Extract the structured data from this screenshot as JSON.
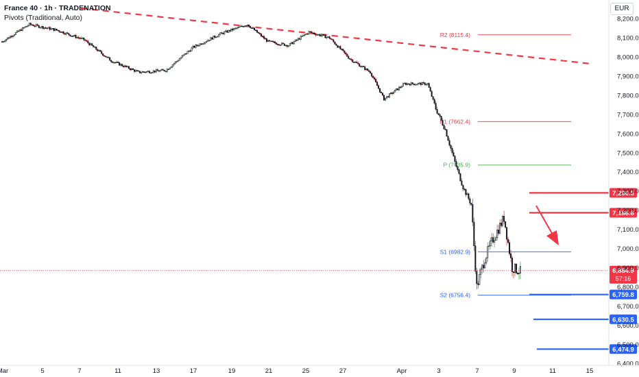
{
  "header": {
    "title": "France 40 · 1h · TRADENATION",
    "subtitle": "Pivots (Traditional, Auto)",
    "currency": "EUR"
  },
  "chart_data": {
    "type": "candlestick",
    "y_axis": {
      "range": [
        6340,
        8290
      ],
      "ticks": [
        "8,200.0",
        "8,100.0",
        "8,000.0",
        "7,900.0",
        "7,800.0",
        "7,700.0",
        "7,600.0",
        "7,500.0",
        "7,400.0",
        "7,300.0",
        "7,200.0",
        "7,100.0",
        "7,000.0",
        "6,900.0",
        "6,800.0",
        "6,700.0",
        "6,600.0",
        "6,500.0",
        "6,400.0"
      ]
    },
    "x_axis": {
      "ticks": [
        "Mar",
        "5",
        "7",
        "11",
        "13",
        "17",
        "19",
        "21",
        "25",
        "27",
        "Apr",
        "3",
        "7",
        "9",
        "11",
        "15"
      ]
    },
    "pivots": [
      {
        "label": "R2 (8115.4)",
        "value": 8115.4,
        "color": "#f23645"
      },
      {
        "label": "R1 (7662.4)",
        "value": 7662.4,
        "color": "#f23645"
      },
      {
        "label": "P (7435.9)",
        "value": 7435.9,
        "color": "#4caf50"
      },
      {
        "label": "S1 (6982.9)",
        "value": 6982.9,
        "color": "#2962ff"
      },
      {
        "label": "S2 (6756.4)",
        "value": 6756.4,
        "color": "#2962ff"
      }
    ],
    "levels": [
      {
        "label": "7,290.5",
        "value": 7290.5,
        "color": "#f23645"
      },
      {
        "label": "7,186.6",
        "value": 7186.6,
        "color": "#f23645"
      },
      {
        "label": "6,759.8",
        "value": 6759.8,
        "color": "#2962ff"
      },
      {
        "label": "6,630.5",
        "value": 6630.5,
        "color": "#2962ff"
      },
      {
        "label": "6,474.9",
        "value": 6474.9,
        "color": "#2962ff"
      }
    ],
    "current_price": {
      "label": "6,884.9",
      "value": 6884.9,
      "countdown": "57:16",
      "color": "#f23645"
    },
    "trendline": {
      "from": 8240,
      "to": 7980,
      "color": "#f23645",
      "style": "dashed"
    },
    "arrow": {
      "direction": "down",
      "color": "#f23645"
    },
    "candles_summary": [
      {
        "index": 0,
        "close": 8080
      },
      {
        "index": 20,
        "close": 8170
      },
      {
        "index": 40,
        "close": 8140
      },
      {
        "index": 60,
        "close": 8090
      },
      {
        "index": 80,
        "close": 7980
      },
      {
        "index": 100,
        "close": 7920
      },
      {
        "index": 120,
        "close": 7930
      },
      {
        "index": 140,
        "close": 8050
      },
      {
        "index": 160,
        "close": 8120
      },
      {
        "index": 180,
        "close": 8170
      },
      {
        "index": 195,
        "close": 8080
      },
      {
        "index": 210,
        "close": 8060
      },
      {
        "index": 225,
        "close": 8130
      },
      {
        "index": 240,
        "close": 8100
      },
      {
        "index": 255,
        "close": 7990
      },
      {
        "index": 270,
        "close": 7920
      },
      {
        "index": 280,
        "close": 7780
      },
      {
        "index": 295,
        "close": 7860
      },
      {
        "index": 312,
        "close": 7860
      },
      {
        "index": 318,
        "close": 7730
      },
      {
        "index": 325,
        "close": 7620
      },
      {
        "index": 332,
        "close": 7450
      },
      {
        "index": 338,
        "close": 7320
      },
      {
        "index": 344,
        "close": 7230
      },
      {
        "index": 348,
        "close": 6800
      },
      {
        "index": 354,
        "close": 6950
      },
      {
        "index": 360,
        "close": 7050
      },
      {
        "index": 368,
        "close": 7160
      },
      {
        "index": 374,
        "close": 6900
      },
      {
        "index": 380,
        "close": 6880
      }
    ]
  }
}
